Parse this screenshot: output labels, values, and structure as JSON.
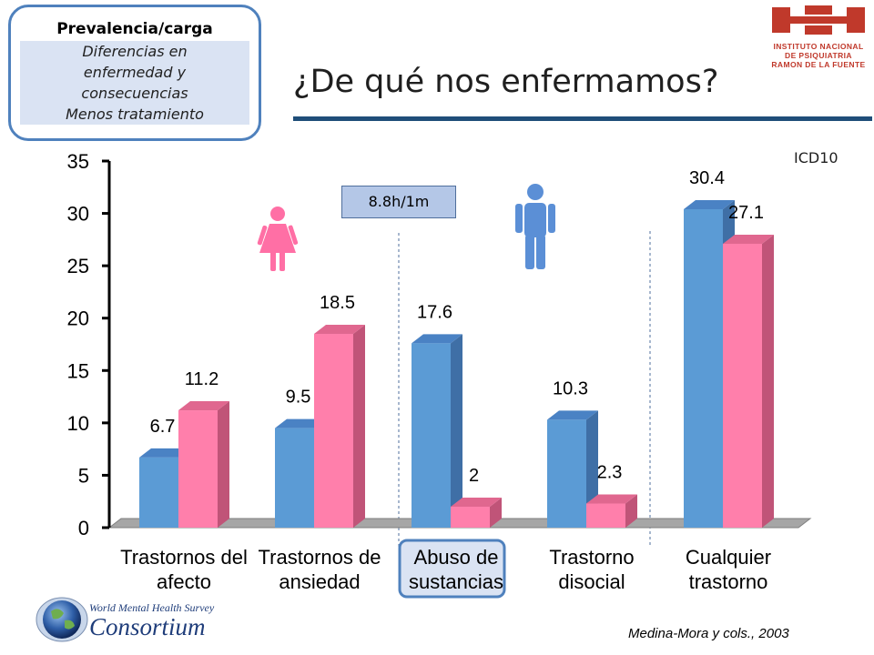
{
  "sidebox": {
    "title": "Prevalencia/carga",
    "lines": [
      "Diferencias en",
      "enfermedad y",
      "consecuencias",
      "Menos tratamiento"
    ]
  },
  "title": "¿De qué nos enfermamos?",
  "logo": {
    "lines": [
      "INSTITUTO NACIONAL",
      "DE PSIQUIATRIA",
      "RAMON DE LA FUENTE"
    ],
    "color": "#c0392b"
  },
  "icd_label": "ICD10",
  "ratio_label": "8.8h/1m",
  "source": "Medina-Mora y cols., 2003",
  "consortium": {
    "line1": "World Mental Health Survey",
    "line2": "Consortium"
  },
  "icons": [
    "female-figure-icon",
    "male-figure-icon",
    "globe-icon"
  ],
  "chart_data": {
    "type": "bar",
    "categories": [
      [
        "Trastornos del",
        "afecto"
      ],
      [
        "Trastornos de",
        "ansiedad"
      ],
      [
        "Abuso de",
        "sustancias"
      ],
      [
        "Trastorno",
        "disocial"
      ],
      [
        "Cualquier",
        "trastorno"
      ]
    ],
    "series": [
      {
        "values": [
          6.7,
          9.5,
          17.6,
          10.3,
          30.4
        ],
        "color": "#5b9bd5"
      },
      {
        "values": [
          11.2,
          18.5,
          2,
          2.3,
          27.1
        ],
        "color": "#ff7fab"
      }
    ],
    "data_labels": [
      [
        "6.7",
        "9.5",
        "17.6",
        "10.3",
        "30.4"
      ],
      [
        "11.2",
        "18.5",
        "2",
        "2.3",
        "27.1"
      ]
    ],
    "yticks": [
      "0",
      "5",
      "10",
      "15",
      "20",
      "25",
      "30",
      "35"
    ],
    "ylim": [
      0,
      35
    ],
    "highlighted_category": 2,
    "grid": false
  }
}
